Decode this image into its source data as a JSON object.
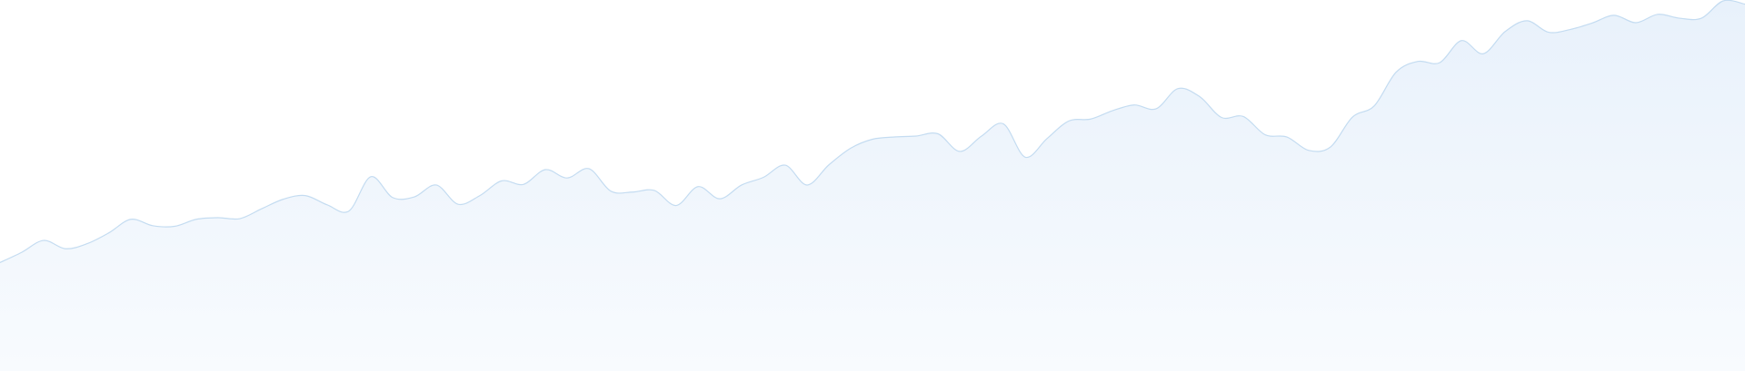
{
  "chart_data": {
    "type": "area",
    "title": "",
    "xlabel": "",
    "ylabel": "",
    "grid": false,
    "legend": "none",
    "ylim": [
      0,
      100
    ],
    "series": [
      {
        "values": [
          18.3,
          21.5,
          25.2,
          22.6,
          24.2,
          27.6,
          31.8,
          29.8,
          29.6,
          31.8,
          32.3,
          32.0,
          35.1,
          38.1,
          39.2,
          36.3,
          34.4,
          45.1,
          38.6,
          38.8,
          42.5,
          36.5,
          39.2,
          43.8,
          42.7,
          47.3,
          44.7,
          47.6,
          40.6,
          40.3,
          40.8,
          36.1,
          42.0,
          38.2,
          42.5,
          44.9,
          48.7,
          42.5,
          48.8,
          54.0,
          56.8,
          57.5,
          57.8,
          58.5,
          53.0,
          57.8,
          61.6,
          51.2,
          57.0,
          62.5,
          63.1,
          65.7,
          67.5,
          66.3,
          72.6,
          70.1,
          63.6,
          63.9,
          58.2,
          57.5,
          53.3,
          54.4,
          63.7,
          67.2,
          77.7,
          81.1,
          80.7,
          87.6,
          83.5,
          90.4,
          93.8,
          90.2,
          91.1,
          93.1,
          95.5,
          93.2,
          95.8,
          94.6,
          94.6,
          100.0,
          99.0
        ]
      }
    ],
    "colors": {
      "fill_top": "#e8f1fb",
      "fill_bottom": "#f8fbfe",
      "line": "#c4dcf1"
    }
  }
}
